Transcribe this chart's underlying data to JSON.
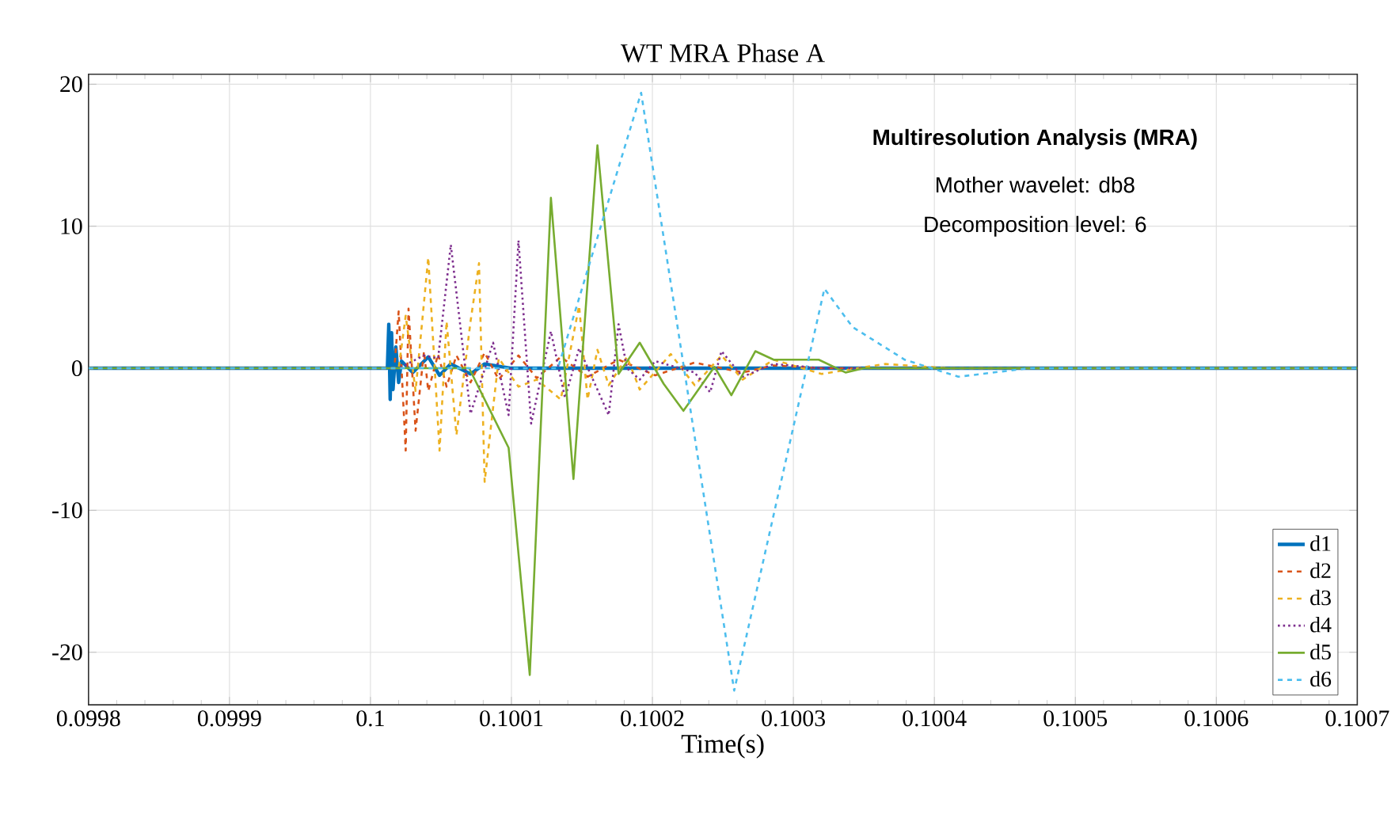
{
  "chart_data": {
    "type": "line",
    "title": "WT MRA Phase A",
    "xlabel": "Time(s)",
    "annotations": [
      "Multiresolution Analysis (MRA)",
      "Mother wavelet: db8",
      "Decomposition level: 6"
    ],
    "xlim": [
      0.0998,
      0.1007
    ],
    "ylim": [
      -23.7,
      20.7
    ],
    "xticks": [
      0.0998,
      0.0999,
      0.1,
      0.1001,
      0.1002,
      0.1003,
      0.1004,
      0.1005,
      0.1006,
      0.1007
    ],
    "yticks": [
      -20,
      -10,
      0,
      10,
      20
    ],
    "grid": true,
    "legend": "bottom right",
    "series": [
      {
        "name": "d1",
        "color": "#0072bd",
        "line_style": "solid",
        "x": [
          0.0998,
          0.100012,
          0.100013,
          0.100014,
          0.100015,
          0.100016,
          0.100018,
          0.10002,
          0.100022,
          0.10003,
          0.100041,
          0.100049,
          0.100057,
          0.100071,
          0.100081,
          0.1001,
          0.1007
        ],
        "values": [
          0,
          0,
          3.1,
          -2.2,
          2.5,
          -1.5,
          1.5,
          -1,
          0.5,
          -0.3,
          0.8,
          -0.5,
          0.3,
          -0.4,
          0.3,
          0,
          0
        ]
      },
      {
        "name": "d2",
        "color": "#d95319",
        "line_style": "dashed",
        "x": [
          0.0998,
          0.100017,
          0.10002,
          0.100025,
          0.100027,
          0.100032,
          0.100038,
          0.100041,
          0.100048,
          0.100054,
          0.100061,
          0.100071,
          0.100081,
          0.100091,
          0.100105,
          0.100118,
          0.100135,
          0.100154,
          0.100176,
          0.100202,
          0.10023,
          0.100264,
          0.100286,
          0.10032,
          0.1007
        ],
        "values": [
          0,
          0,
          4,
          -5.8,
          4.2,
          -4.4,
          1.2,
          -1.6,
          1,
          -1.3,
          0.9,
          -1,
          1.1,
          -0.8,
          0.9,
          -0.7,
          0.8,
          -0.6,
          0.6,
          -0.5,
          0.4,
          -0.3,
          0.2,
          0,
          0
        ]
      },
      {
        "name": "d3",
        "color": "#edb120",
        "line_style": "dashed",
        "x": [
          0.0998,
          0.10002,
          0.100025,
          0.100032,
          0.100041,
          0.100049,
          0.100054,
          0.100061,
          0.100071,
          0.100077,
          0.100081,
          0.100091,
          0.100105,
          0.100118,
          0.100135,
          0.100148,
          0.100154,
          0.100161,
          0.100169,
          0.100182,
          0.100191,
          0.100213,
          0.10023,
          0.100249,
          0.100264,
          0.100286,
          0.10032,
          0.100365,
          0.10041,
          0.1007
        ],
        "values": [
          0,
          0,
          3.7,
          -1.6,
          7.8,
          -5.8,
          3.3,
          -4.7,
          3.3,
          7.4,
          -8,
          0.7,
          -1.3,
          -0.8,
          -2.2,
          4.4,
          -2.2,
          1.3,
          -1.2,
          0.8,
          -1.5,
          1,
          -1.2,
          0.9,
          -0.8,
          0.6,
          -0.4,
          0.3,
          0,
          0
        ]
      },
      {
        "name": "d4",
        "color": "#7e2f8e",
        "line_style": "dotted",
        "x": [
          0.0998,
          0.10002,
          0.100038,
          0.100048,
          0.100057,
          0.100071,
          0.100087,
          0.100098,
          0.100105,
          0.100114,
          0.100128,
          0.100138,
          0.100148,
          0.100169,
          0.100176,
          0.100182,
          0.100191,
          0.100202,
          0.10023,
          0.100241,
          0.100249,
          0.100264,
          0.100286,
          0.10032,
          0.1007
        ],
        "values": [
          0,
          0,
          0.9,
          0.7,
          8.7,
          -3.2,
          1.8,
          -3.3,
          9,
          -3.9,
          2.6,
          -2.1,
          1.4,
          -3.3,
          3.1,
          0,
          -0.8,
          0.5,
          -0.3,
          -1.7,
          1.2,
          -0.6,
          0.3,
          0,
          0
        ]
      },
      {
        "name": "d5",
        "color": "#77ac30",
        "line_style": "solid",
        "x": [
          0.0998,
          0.10007,
          0.100098,
          0.100113,
          0.100128,
          0.100144,
          0.100161,
          0.100176,
          0.100191,
          0.100208,
          0.100222,
          0.100244,
          0.100256,
          0.100273,
          0.100286,
          0.100318,
          0.100337,
          0.10035,
          0.100387,
          0.1007
        ],
        "values": [
          0,
          0,
          -5.6,
          -21.6,
          12,
          -7.8,
          15.7,
          -0.4,
          1.8,
          -1.1,
          -3,
          0.1,
          -1.9,
          1.2,
          0.6,
          0.6,
          -0.3,
          0,
          0,
          0
        ]
      },
      {
        "name": "d6",
        "color": "#4dbeee",
        "line_style": "dashed",
        "x": [
          0.0998,
          0.100133,
          0.100192,
          0.100258,
          0.100322,
          0.100342,
          0.100379,
          0.100417,
          0.100467,
          0.1007
        ],
        "values": [
          0,
          0,
          19.4,
          -22.7,
          5.6,
          2.9,
          0.6,
          -0.6,
          0,
          0
        ]
      }
    ]
  }
}
